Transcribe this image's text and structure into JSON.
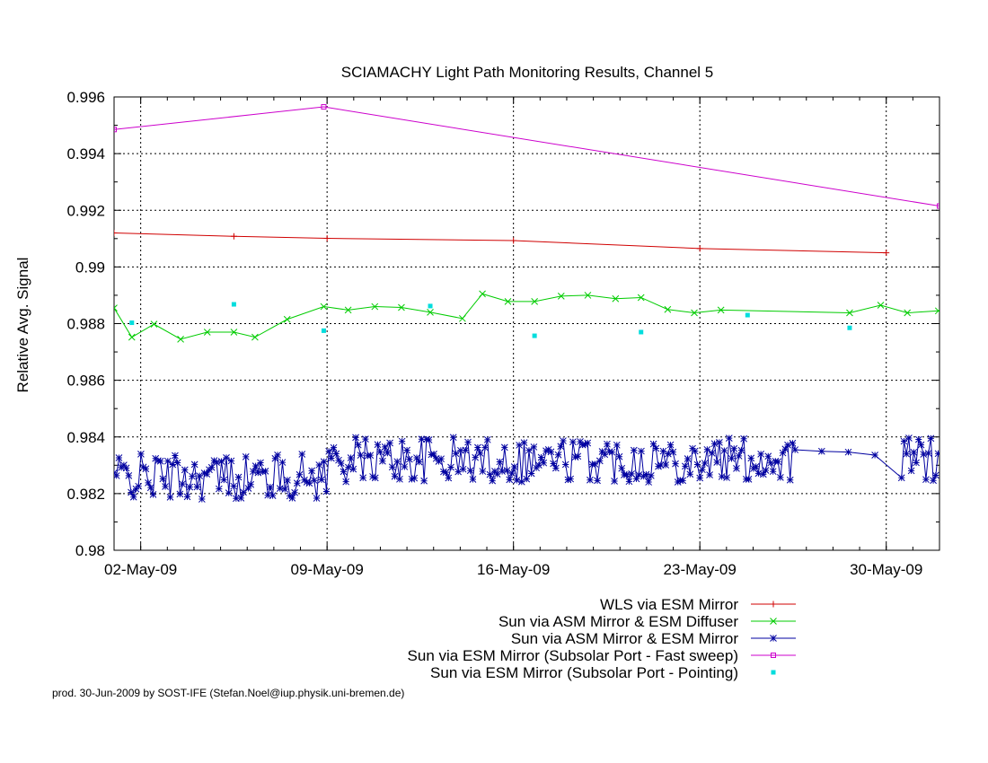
{
  "chart_data": {
    "type": "line",
    "title": "SCIAMACHY Light Path Monitoring Results, Channel 5",
    "ylabel": "Relative Avg. Signal",
    "xlabel": "",
    "xlim": [
      "2009-05-01",
      "2009-06-01"
    ],
    "ylim": [
      0.98,
      0.996
    ],
    "grid": true,
    "legend_position": "bottom-right, below plot",
    "x_ticks": [
      "02-May-09",
      "09-May-09",
      "16-May-09",
      "23-May-09",
      "30-May-09"
    ],
    "y_ticks": [
      "0.98",
      "0.982",
      "0.984",
      "0.986",
      "0.988",
      "0.99",
      "0.992",
      "0.994",
      "0.996"
    ],
    "footer": "prod. 30-Jun-2009 by SOST-IFE (Stefan.Noel@iup.physik.uni-bremen.de)",
    "series": [
      {
        "name": "WLS via ESM Mirror",
        "color": "#d00000",
        "marker": "plus",
        "points": [
          [
            "2009-05-01",
            0.9912
          ],
          [
            "2009-05-05T12:00",
            0.99108
          ],
          [
            "2009-05-09",
            0.99101
          ],
          [
            "2009-05-16",
            0.99093
          ],
          [
            "2009-05-23",
            0.99065
          ],
          [
            "2009-05-30",
            0.9905
          ]
        ]
      },
      {
        "name": "Sun via ASM Mirror & ESM Diffuser",
        "color": "#00cc00",
        "marker": "x",
        "points": [
          [
            "2009-05-01",
            0.98855
          ],
          [
            "2009-05-01T16:00",
            0.98752
          ],
          [
            "2009-05-02T12:00",
            0.98798
          ],
          [
            "2009-05-03T12:00",
            0.98745
          ],
          [
            "2009-05-04T12:00",
            0.9877
          ],
          [
            "2009-05-05T12:00",
            0.9877
          ],
          [
            "2009-05-06T07:00",
            0.98752
          ],
          [
            "2009-05-07T12:00",
            0.98815
          ],
          [
            "2009-05-08T21:00",
            0.9886
          ],
          [
            "2009-05-09T19:00",
            0.98848
          ],
          [
            "2009-05-10T19:00",
            0.9886
          ],
          [
            "2009-05-11T19:00",
            0.98857
          ],
          [
            "2009-05-12T21:00",
            0.9884
          ],
          [
            "2009-05-14T02:00",
            0.98818
          ],
          [
            "2009-05-14T20:00",
            0.98905
          ],
          [
            "2009-05-15T19:00",
            0.98878
          ],
          [
            "2009-05-16T19:00",
            0.98878
          ],
          [
            "2009-05-17T19:00",
            0.98897
          ],
          [
            "2009-05-18T19:00",
            0.989
          ],
          [
            "2009-05-19T20:00",
            0.98888
          ],
          [
            "2009-05-20T19:00",
            0.98892
          ],
          [
            "2009-05-21T19:00",
            0.9885
          ],
          [
            "2009-05-22T19:00",
            0.98838
          ],
          [
            "2009-05-23T19:00",
            0.98848
          ],
          [
            "2009-05-28T15:00",
            0.98838
          ],
          [
            "2009-05-29T19:00",
            0.98865
          ],
          [
            "2009-05-30T19:00",
            0.98838
          ],
          [
            "2009-05-31T23:00",
            0.98845
          ]
        ]
      },
      {
        "name": "Sun via ASM Mirror & ESM Mirror",
        "color": "#0000a0",
        "marker": "star",
        "generated": "dense noisy series, ~0.9818-0.9840",
        "points": []
      },
      {
        "name": "Sun via ESM Mirror (Subsolar Port - Fast sweep)",
        "color": "#cc00cc",
        "marker": "square",
        "points": [
          [
            "2009-05-01",
            0.99485
          ],
          [
            "2009-05-08T21:00",
            0.99565
          ],
          [
            "2009-06-01",
            0.99215
          ]
        ]
      },
      {
        "name": "Sun via ESM Mirror (Subsolar Port - Pointing)",
        "color": "#00dddd",
        "marker": "dot",
        "points": [
          [
            "2009-05-01T16:00",
            0.98803
          ],
          [
            "2009-05-05T12:00",
            0.98868
          ],
          [
            "2009-05-08T21:00",
            0.98775
          ],
          [
            "2009-05-12T21:00",
            0.98862
          ],
          [
            "2009-05-16T19:00",
            0.98757
          ],
          [
            "2009-05-20T19:00",
            0.9877
          ],
          [
            "2009-05-24T19:00",
            0.9883
          ],
          [
            "2009-05-28T15:00",
            0.98785
          ]
        ]
      }
    ]
  }
}
